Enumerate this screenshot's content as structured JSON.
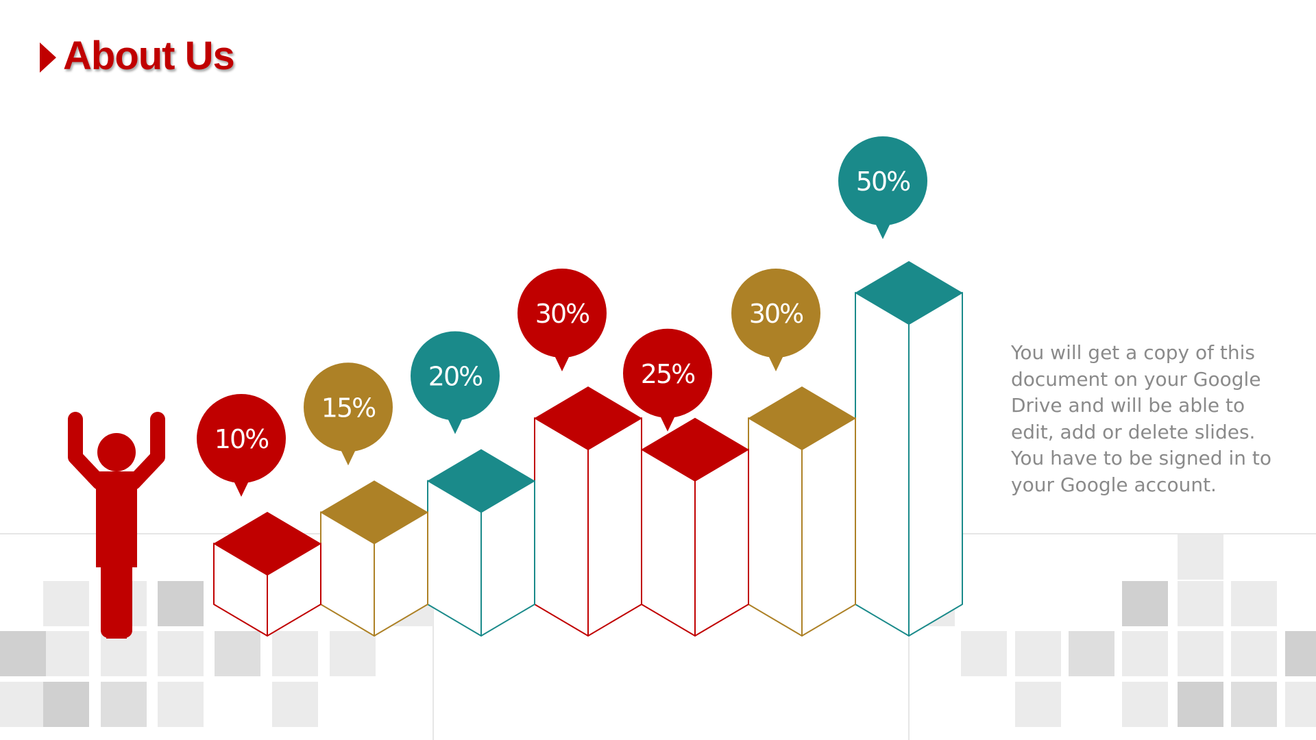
{
  "slide": {
    "title": "About Us",
    "description": "You will get a copy of this document on  your Google Drive and will be able to  edit, add or delete slides. You have to be signed in to your  Google account.",
    "figure_icon": "person-raising-arms-icon"
  },
  "colors": {
    "red": "#c00000",
    "gold": "#ad8126",
    "teal": "#1a8a8a",
    "grid_light": "#ebebeb",
    "grid_mid": "#dedede",
    "grid_dark": "#d0d0d0",
    "text_gray": "#8a8a8a"
  },
  "chart_data": {
    "type": "bar",
    "style": "isometric 3D columns with speech-bubble data labels",
    "values": [
      10,
      15,
      20,
      30,
      25,
      30,
      50
    ],
    "labels": [
      "10%",
      "15%",
      "20%",
      "30%",
      "25%",
      "30%",
      "50%"
    ],
    "bar_colors": [
      "red",
      "gold",
      "teal",
      "red",
      "red",
      "gold",
      "teal"
    ],
    "ylim": [
      0,
      50
    ],
    "title": "",
    "xlabel": "",
    "ylabel": "",
    "legend": "none",
    "grid": false
  }
}
